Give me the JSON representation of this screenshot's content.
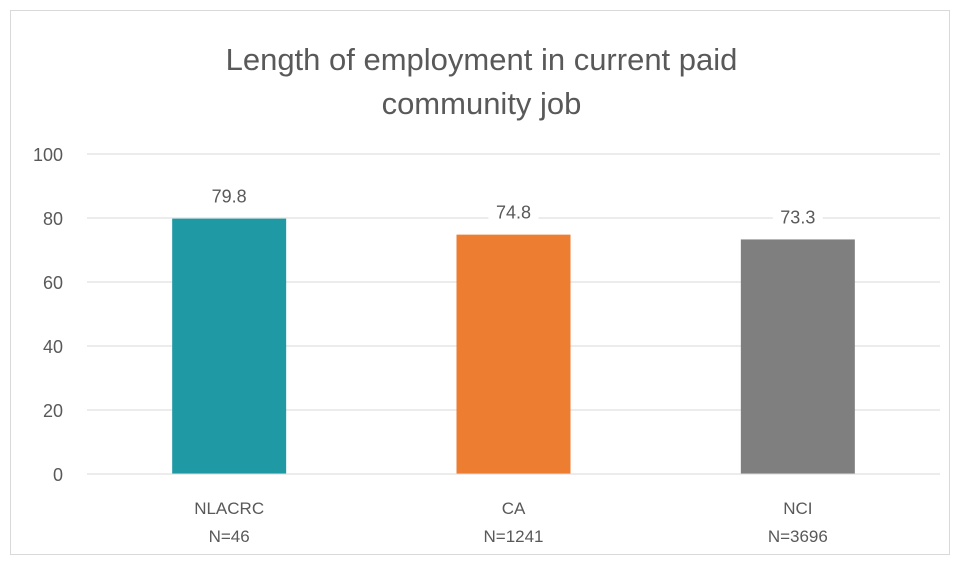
{
  "chart_data": {
    "type": "bar",
    "title": "Length of employment in current paid community job",
    "title_lines": [
      "Length of employment in current paid",
      "community job"
    ],
    "categories": [
      "NLACRC",
      "CA",
      "NCI"
    ],
    "category_sublabels": [
      "N=46",
      "N=1241",
      "N=3696"
    ],
    "values": [
      79.8,
      74.8,
      73.3
    ],
    "data_labels": [
      "79.8",
      "74.8",
      "73.3"
    ],
    "colors": [
      "#1f9aa5",
      "#ed7d31",
      "#7f7f7f"
    ],
    "xlabel": "",
    "ylabel": "",
    "ylim": [
      0,
      100
    ],
    "yticks": [
      0,
      20,
      40,
      60,
      80,
      100
    ],
    "grid": true,
    "legend": "none"
  }
}
